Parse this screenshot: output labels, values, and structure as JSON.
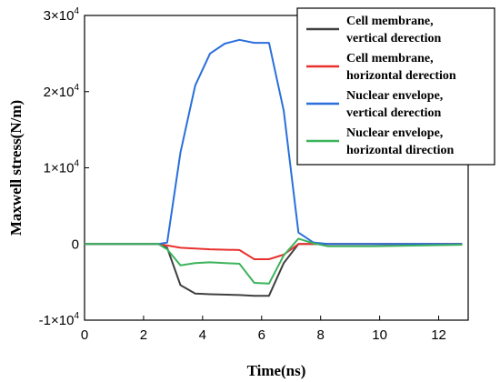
{
  "chart_data": {
    "type": "line",
    "xlabel": "Time(ns)",
    "ylabel": "Maxwell stress(N/m)",
    "xlim": [
      0,
      13
    ],
    "ylim": [
      -10000,
      30000
    ],
    "x_ticks": [
      0,
      2,
      4,
      6,
      8,
      10,
      12
    ],
    "x_tick_labels": [
      "0",
      "2",
      "4",
      "6",
      "8",
      "10",
      "12"
    ],
    "y_ticks": [
      {
        "value": 30000,
        "base": "3×10",
        "exp": "4"
      },
      {
        "value": 20000,
        "base": "2×10",
        "exp": "4"
      },
      {
        "value": 10000,
        "base": "1×10",
        "exp": "4"
      },
      {
        "value": 0,
        "base": "0",
        "exp": ""
      },
      {
        "value": -10000,
        "base": "-1×10",
        "exp": "4"
      }
    ],
    "legend_position": "top-right",
    "series": [
      {
        "name": "Cell membrane, vertical derection",
        "legend_lines": [
          "Cell membrane,",
          " vertical derection"
        ],
        "color": "#404040",
        "points": [
          [
            0,
            0
          ],
          [
            2.5,
            0
          ],
          [
            2.8,
            -500
          ],
          [
            3.25,
            -5400
          ],
          [
            3.75,
            -6500
          ],
          [
            4.25,
            -6600
          ],
          [
            5.25,
            -6700
          ],
          [
            5.75,
            -6800
          ],
          [
            6.25,
            -6800
          ],
          [
            6.75,
            -2500
          ],
          [
            7.25,
            0
          ],
          [
            7.75,
            0
          ],
          [
            8.25,
            0
          ],
          [
            9.75,
            0
          ],
          [
            12.8,
            0
          ]
        ]
      },
      {
        "name": "Cell membrane, horizontal derection",
        "legend_lines": [
          "Cell membrane,",
          "horizontal derection"
        ],
        "color": "#e8312f",
        "points": [
          [
            0,
            0
          ],
          [
            2.5,
            0
          ],
          [
            2.8,
            -200
          ],
          [
            3.25,
            -500
          ],
          [
            3.75,
            -600
          ],
          [
            4.25,
            -700
          ],
          [
            5.25,
            -800
          ],
          [
            5.75,
            -2000
          ],
          [
            6.25,
            -2000
          ],
          [
            6.75,
            -1400
          ],
          [
            7.25,
            0
          ],
          [
            7.75,
            0
          ],
          [
            8.25,
            0
          ],
          [
            9.75,
            0
          ],
          [
            12.8,
            0
          ]
        ]
      },
      {
        "name": "Nuclear envelope, vertical derection",
        "legend_lines": [
          "Nuclear envelope,",
          "vertical derection"
        ],
        "color": "#2a6fdb",
        "points": [
          [
            0,
            0
          ],
          [
            2.5,
            0
          ],
          [
            2.8,
            200
          ],
          [
            3.25,
            12000
          ],
          [
            3.75,
            20800
          ],
          [
            4.25,
            25000
          ],
          [
            4.75,
            26300
          ],
          [
            5.25,
            26800
          ],
          [
            5.75,
            26400
          ],
          [
            6.25,
            26400
          ],
          [
            6.75,
            17500
          ],
          [
            7.25,
            1500
          ],
          [
            7.75,
            200
          ],
          [
            8.25,
            0
          ],
          [
            9.75,
            0
          ],
          [
            12.8,
            0
          ]
        ]
      },
      {
        "name": "Nuclear envelope, horizontal direction",
        "legend_lines": [
          "Nuclear envelope,",
          "horizontal direction"
        ],
        "color": "#3bb35a",
        "points": [
          [
            0,
            0
          ],
          [
            2.5,
            0
          ],
          [
            2.8,
            -700
          ],
          [
            3.25,
            -2800
          ],
          [
            3.75,
            -2500
          ],
          [
            4.25,
            -2400
          ],
          [
            5.25,
            -2600
          ],
          [
            5.75,
            -5100
          ],
          [
            6.25,
            -5200
          ],
          [
            6.75,
            -1500
          ],
          [
            7.25,
            700
          ],
          [
            7.75,
            100
          ],
          [
            8.25,
            -300
          ],
          [
            9.75,
            -300
          ],
          [
            12.8,
            -100
          ]
        ]
      }
    ]
  }
}
